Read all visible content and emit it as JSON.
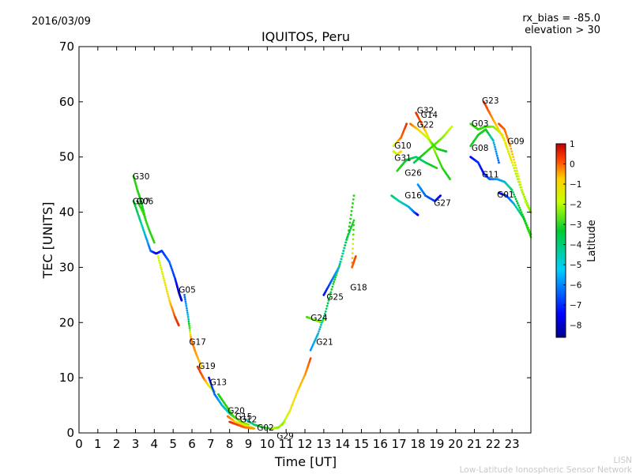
{
  "header": {
    "date": "2016/03/09",
    "rx_bias": "rx_bias = -85.0",
    "elevation": "elevation > 30"
  },
  "footer": {
    "line1": "LISN",
    "line2": "Low-Latitude Ionospheric Sensor Network"
  },
  "chart_data": {
    "type": "scatter",
    "title": "IQUITOS, Peru",
    "xlabel": "Time [UT]",
    "ylabel": "TEC [UNITS]",
    "xlim": [
      0,
      24
    ],
    "ylim": [
      0,
      70
    ],
    "xticks": [
      0,
      1,
      2,
      3,
      4,
      5,
      6,
      7,
      8,
      9,
      10,
      11,
      12,
      13,
      14,
      15,
      16,
      17,
      18,
      19,
      20,
      21,
      22,
      23
    ],
    "yticks": [
      0,
      10,
      20,
      30,
      40,
      50,
      60,
      70
    ],
    "grid": false,
    "colorbar": {
      "label": "Latitude",
      "range": [
        -8.6,
        1
      ],
      "ticks": [
        1,
        0,
        -1,
        -2,
        -3,
        -4,
        -5,
        -6,
        -7,
        -8
      ],
      "tick_labels": [
        "1",
        "0",
        "−1",
        "−2",
        "−3",
        "−4",
        "−5",
        "−6",
        "−7",
        "−8"
      ]
    },
    "series": [
      {
        "name": "G30",
        "points": [
          [
            2.9,
            46.5,
            -3.5
          ],
          [
            3.1,
            44,
            -3.5
          ],
          [
            3.3,
            42,
            -4
          ],
          [
            3.55,
            38.5,
            -4.5
          ]
        ]
      },
      {
        "name": "G07",
        "points": [
          [
            2.9,
            42,
            -4.5
          ],
          [
            3.2,
            39,
            -5
          ],
          [
            3.5,
            36,
            -6
          ],
          [
            3.8,
            33,
            -7
          ],
          [
            4.1,
            32.5,
            -8
          ],
          [
            4.4,
            33,
            -7.5
          ],
          [
            4.8,
            31,
            -7
          ],
          [
            5.1,
            28,
            -7.5
          ],
          [
            5.3,
            25.5,
            -8.5
          ],
          [
            5.45,
            24,
            -8.2
          ]
        ]
      },
      {
        "name": "G06",
        "points": [
          [
            3.1,
            42,
            -4
          ],
          [
            3.4,
            40,
            -3
          ],
          [
            3.7,
            37,
            -3.5
          ],
          [
            4.0,
            34.5,
            -3.5
          ]
        ]
      },
      {
        "name": "G05",
        "points": [
          [
            4.2,
            32,
            -2
          ],
          [
            4.5,
            28,
            -1.5
          ],
          [
            4.8,
            24,
            -1
          ],
          [
            5.1,
            21,
            0.3
          ],
          [
            5.3,
            19.5,
            0.5
          ]
        ]
      },
      {
        "name": "G17",
        "points": [
          [
            5.6,
            25,
            -7
          ],
          [
            5.8,
            21,
            -6
          ],
          [
            5.95,
            17,
            0
          ],
          [
            6.2,
            14.5,
            -0.5
          ],
          [
            6.5,
            12,
            -1
          ]
        ]
      },
      {
        "name": "G19",
        "points": [
          [
            6.3,
            12,
            0.5
          ],
          [
            6.6,
            10,
            0
          ],
          [
            6.9,
            8.5,
            -1.5
          ],
          [
            7.2,
            7.5,
            -2.5
          ]
        ]
      },
      {
        "name": "G13",
        "points": [
          [
            6.9,
            10,
            -8
          ],
          [
            7.2,
            7,
            -7
          ],
          [
            7.6,
            5,
            -6
          ],
          [
            8.0,
            3.5,
            -5.5
          ],
          [
            8.4,
            2.5,
            -5
          ]
        ]
      },
      {
        "name": "G20",
        "points": [
          [
            7.4,
            7,
            -4
          ],
          [
            7.8,
            5,
            -3.5
          ],
          [
            8.2,
            3,
            -3
          ],
          [
            8.6,
            2,
            -2.5
          ],
          [
            9.0,
            1.5,
            -2.5
          ]
        ]
      },
      {
        "name": "G15",
        "points": [
          [
            7.9,
            3,
            0
          ],
          [
            8.3,
            2,
            -1
          ],
          [
            8.7,
            1.5,
            -1.5
          ],
          [
            9.2,
            1,
            -2
          ]
        ]
      },
      {
        "name": "G12",
        "points": [
          [
            8.0,
            2,
            0.5
          ],
          [
            8.4,
            1.5,
            0.3
          ],
          [
            8.8,
            1,
            0
          ],
          [
            9.3,
            0.8,
            -0.5
          ]
        ]
      },
      {
        "name": "G02",
        "points": [
          [
            8.8,
            2.5,
            -6
          ],
          [
            9.3,
            1.5,
            -5
          ],
          [
            9.8,
            1,
            -4
          ],
          [
            10.3,
            0.7,
            -3
          ]
        ]
      },
      {
        "name": "G29",
        "points": [
          [
            10.2,
            0.8,
            -2
          ],
          [
            10.6,
            1,
            -2.5
          ],
          [
            10.9,
            2,
            -2
          ]
        ]
      },
      {
        "name": "G21",
        "points": [
          [
            10.8,
            1.5,
            -2.5
          ],
          [
            11.2,
            4,
            -1.5
          ],
          [
            11.6,
            7.5,
            -1
          ],
          [
            12.0,
            10.5,
            -0.5
          ],
          [
            12.3,
            13.5,
            0.3
          ]
        ]
      },
      {
        "name": "G24",
        "points": [
          [
            12.1,
            21,
            -3
          ],
          [
            12.5,
            20.5,
            -2.5
          ],
          [
            12.9,
            20,
            -2.5
          ],
          [
            13.1,
            21,
            -2
          ]
        ]
      },
      {
        "name": "G25",
        "points": [
          [
            12.3,
            15,
            -6.5
          ],
          [
            12.7,
            18,
            -6
          ],
          [
            13.1,
            22,
            -5
          ],
          [
            13.5,
            27,
            -4
          ],
          [
            13.9,
            31,
            -3.5
          ],
          [
            14.3,
            36,
            -4
          ],
          [
            14.6,
            43,
            -3.5
          ]
        ]
      },
      {
        "name": "G18",
        "points": [
          [
            13.0,
            25,
            -8
          ],
          [
            13.4,
            27.5,
            -7
          ],
          [
            13.8,
            30,
            -6
          ],
          [
            14.2,
            35,
            -5
          ],
          [
            14.6,
            38.5,
            -4
          ],
          [
            14.5,
            30,
            0
          ],
          [
            14.7,
            32,
            0.3
          ]
        ]
      },
      {
        "name": "G10",
        "points": [
          [
            16.7,
            51,
            -1.5
          ],
          [
            16.9,
            50.5,
            -2
          ],
          [
            17.1,
            51,
            -1
          ]
        ]
      },
      {
        "name": "G31",
        "points": [
          [
            16.7,
            52,
            -2
          ],
          [
            17.1,
            53.5,
            0
          ],
          [
            17.4,
            56,
            0.5
          ]
        ]
      },
      {
        "name": "G26",
        "points": [
          [
            16.9,
            47.5,
            -3.5
          ],
          [
            17.4,
            49.5,
            -4.5
          ],
          [
            17.9,
            50,
            -5
          ],
          [
            18.4,
            49,
            -5
          ],
          [
            19.0,
            48,
            -3.5
          ]
        ]
      },
      {
        "name": "G16",
        "points": [
          [
            16.6,
            43,
            -5
          ],
          [
            17.0,
            42,
            -5.5
          ],
          [
            17.5,
            41,
            -6
          ],
          [
            17.8,
            40,
            -7
          ],
          [
            18.0,
            39.5,
            -8
          ]
        ]
      },
      {
        "name": "G32",
        "points": [
          [
            17.9,
            58,
            0.5
          ],
          [
            18.2,
            56,
            0
          ],
          [
            18.5,
            54,
            -1.5
          ],
          [
            18.9,
            51,
            -2.5
          ],
          [
            19.3,
            48,
            -3.5
          ],
          [
            19.7,
            46,
            -4
          ]
        ]
      },
      {
        "name": "G14",
        "points": [
          [
            17.6,
            56,
            0
          ],
          [
            18.0,
            55,
            -1
          ],
          [
            18.5,
            53.5,
            -2
          ],
          [
            19.0,
            51.5,
            -3.5
          ],
          [
            19.5,
            51,
            -4.5
          ]
        ]
      },
      {
        "name": "G22",
        "points": [
          [
            18.0,
            45,
            -6.5
          ],
          [
            18.4,
            43,
            -7
          ],
          [
            18.9,
            42,
            -7.5
          ],
          [
            19.2,
            43,
            -8
          ]
        ]
      },
      {
        "name": "G27",
        "points": [
          [
            17.8,
            49,
            -5
          ],
          [
            18.3,
            50.5,
            -4
          ],
          [
            18.8,
            52,
            -3
          ],
          [
            19.3,
            53.5,
            -2.5
          ],
          [
            19.8,
            55.5,
            -2
          ]
        ]
      },
      {
        "name": "G03",
        "points": [
          [
            20.8,
            56,
            -3
          ],
          [
            21.2,
            55,
            -3.5
          ],
          [
            21.6,
            55.5,
            -3
          ],
          [
            22.0,
            55.5,
            -2.5
          ],
          [
            22.5,
            54,
            -2
          ],
          [
            23.0,
            49,
            -2
          ],
          [
            23.5,
            44,
            -2.5
          ],
          [
            24.0,
            40,
            -3
          ]
        ]
      },
      {
        "name": "G23",
        "points": [
          [
            21.5,
            60,
            0.5
          ],
          [
            21.8,
            58,
            0
          ],
          [
            22.2,
            55.5,
            -1
          ],
          [
            22.6,
            53,
            -1.5
          ],
          [
            23.0,
            49,
            -1.5
          ]
        ]
      },
      {
        "name": "G08",
        "points": [
          [
            20.8,
            52,
            -4
          ],
          [
            21.2,
            54,
            -4
          ],
          [
            21.6,
            55,
            -4
          ],
          [
            22.0,
            53,
            -6
          ],
          [
            22.3,
            49,
            -7
          ]
        ]
      },
      {
        "name": "G09",
        "points": [
          [
            22.3,
            56,
            0.3
          ],
          [
            22.6,
            55,
            0
          ],
          [
            22.9,
            52,
            -0.5
          ],
          [
            23.3,
            47,
            -1.5
          ],
          [
            23.7,
            42,
            -2
          ],
          [
            24.0,
            40,
            -2.5
          ]
        ]
      },
      {
        "name": "G11",
        "points": [
          [
            20.8,
            50,
            -8
          ],
          [
            21.2,
            49,
            -7.5
          ],
          [
            21.5,
            47,
            -8
          ],
          [
            21.8,
            46,
            -7
          ],
          [
            22.2,
            46,
            -6.5
          ],
          [
            22.6,
            45.5,
            -6
          ],
          [
            23.0,
            44,
            -5
          ],
          [
            23.5,
            40,
            -4
          ],
          [
            24.0,
            36,
            -3
          ]
        ]
      },
      {
        "name": "G01",
        "points": [
          [
            22.3,
            43.5,
            -8
          ],
          [
            22.7,
            43,
            -7.5
          ],
          [
            23.1,
            41.5,
            -6
          ],
          [
            23.6,
            39,
            -4.5
          ],
          [
            24.0,
            35.5,
            -3
          ]
        ]
      }
    ],
    "labels": [
      {
        "text": "G30",
        "x": 2.85,
        "y": 46.5
      },
      {
        "text": "G07",
        "x": 2.85,
        "y": 42
      },
      {
        "text": "G06",
        "x": 3.05,
        "y": 42
      },
      {
        "text": "G05",
        "x": 5.3,
        "y": 26
      },
      {
        "text": "G17",
        "x": 5.85,
        "y": 16.5
      },
      {
        "text": "G19",
        "x": 6.35,
        "y": 12.2
      },
      {
        "text": "G13",
        "x": 6.95,
        "y": 9.2
      },
      {
        "text": "G20",
        "x": 7.9,
        "y": 4.1
      },
      {
        "text": "G15",
        "x": 8.3,
        "y": 3
      },
      {
        "text": "G12",
        "x": 8.55,
        "y": 2.5
      },
      {
        "text": "G02",
        "x": 9.45,
        "y": 1
      },
      {
        "text": "G29",
        "x": 10.5,
        "y": -0.5
      },
      {
        "text": "G21",
        "x": 12.6,
        "y": 16.5
      },
      {
        "text": "G24",
        "x": 12.3,
        "y": 20.9
      },
      {
        "text": "G25",
        "x": 13.15,
        "y": 24.7
      },
      {
        "text": "G18",
        "x": 14.4,
        "y": 26.4
      },
      {
        "text": "G10",
        "x": 16.75,
        "y": 52.1
      },
      {
        "text": "G31",
        "x": 16.75,
        "y": 49.9
      },
      {
        "text": "G26",
        "x": 17.3,
        "y": 47.2
      },
      {
        "text": "G16",
        "x": 17.3,
        "y": 43.1
      },
      {
        "text": "G32",
        "x": 17.95,
        "y": 58.5
      },
      {
        "text": "G14",
        "x": 18.15,
        "y": 57.7
      },
      {
        "text": "G22",
        "x": 17.95,
        "y": 55.9
      },
      {
        "text": "G27",
        "x": 18.85,
        "y": 41.7
      },
      {
        "text": "G03",
        "x": 20.85,
        "y": 56.1
      },
      {
        "text": "G23",
        "x": 21.4,
        "y": 60.3
      },
      {
        "text": "G08",
        "x": 20.85,
        "y": 51.7
      },
      {
        "text": "G09",
        "x": 22.75,
        "y": 52.9
      },
      {
        "text": "G11",
        "x": 21.4,
        "y": 46.9
      },
      {
        "text": "G01",
        "x": 22.2,
        "y": 43.2
      }
    ]
  }
}
